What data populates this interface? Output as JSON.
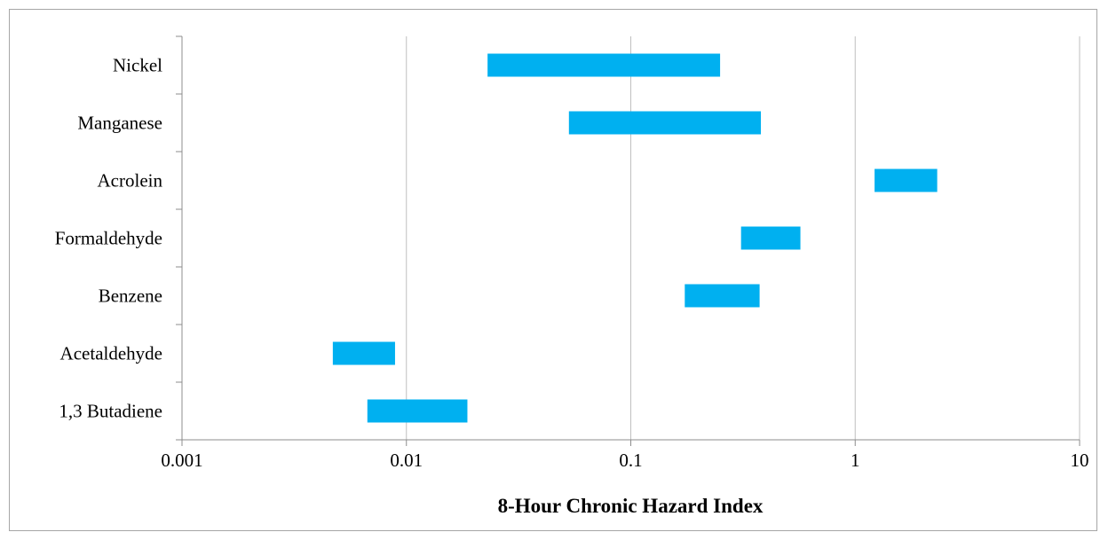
{
  "chart_data": {
    "type": "bar",
    "orientation": "horizontal",
    "xscale": "log",
    "xlim": [
      0.001,
      10
    ],
    "xticks": [
      "0.001",
      "0.01",
      "0.1",
      "1",
      "10"
    ],
    "xlabel": "8-Hour Chronic Hazard Index",
    "ylabel": "",
    "title": "",
    "grid": true,
    "bar_color": "#00b0f0",
    "categories": [
      "Nickel",
      "Manganese",
      "Acrolein",
      "Formaldehyde",
      "Benzene",
      "Acetaldehyde",
      "1,3 Butadiene"
    ],
    "ranges": [
      [
        0.023,
        0.25
      ],
      [
        0.053,
        0.38
      ],
      [
        1.22,
        2.32
      ],
      [
        0.31,
        0.57
      ],
      [
        0.174,
        0.375
      ],
      [
        0.0047,
        0.0089
      ],
      [
        0.0067,
        0.0187
      ]
    ]
  }
}
